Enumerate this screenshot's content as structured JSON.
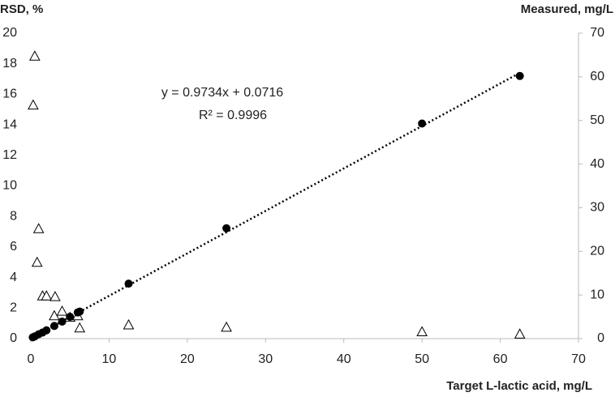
{
  "chart_data": {
    "type": "scatter",
    "ylabel": "RSD, %",
    "y2label": "Measured, mg/L",
    "xlabel": "Target L-lactic acid, mg/L",
    "xlim": [
      0,
      70
    ],
    "xticks": [
      0,
      10,
      20,
      30,
      40,
      50,
      60,
      70
    ],
    "ylim": [
      0,
      20
    ],
    "yticks": [
      0,
      2,
      4,
      6,
      8,
      10,
      12,
      14,
      16,
      18,
      20
    ],
    "y2lim": [
      0,
      70
    ],
    "y2ticks": [
      0,
      10,
      20,
      30,
      40,
      50,
      60,
      70
    ],
    "grid": false,
    "series": [
      {
        "color": "#000000",
        "marker": "triangle",
        "axis": "y",
        "x": [
          0.3,
          0.5,
          1,
          0.8,
          1.5,
          2,
          3.1,
          3,
          4,
          5,
          6,
          6.25,
          12.5,
          25,
          50,
          62.5
        ],
        "values": [
          15.3,
          18.5,
          7.2,
          5,
          2.8,
          2.8,
          2.75,
          1.5,
          1.8,
          1.4,
          1.5,
          0.7,
          0.9,
          0.75,
          0.45,
          0.3
        ]
      },
      {
        "color": "#000000",
        "marker": "circle",
        "axis": "y2",
        "x": [
          0.25,
          0.5,
          1,
          1.5,
          2,
          3,
          4,
          5,
          6,
          6.25,
          12.5,
          25,
          50,
          62.5
        ],
        "values": [
          0.3,
          0.5,
          1,
          1.4,
          1.9,
          2.9,
          3.9,
          5,
          6,
          6.2,
          12.6,
          25.3,
          49.3,
          60.2
        ]
      }
    ],
    "trendline": {
      "slope": 0.9734,
      "intercept": 0.0716,
      "axis": "y2",
      "equation": "y = 0.9734x + 0.0716",
      "r2": "R² = 0.9996"
    }
  }
}
